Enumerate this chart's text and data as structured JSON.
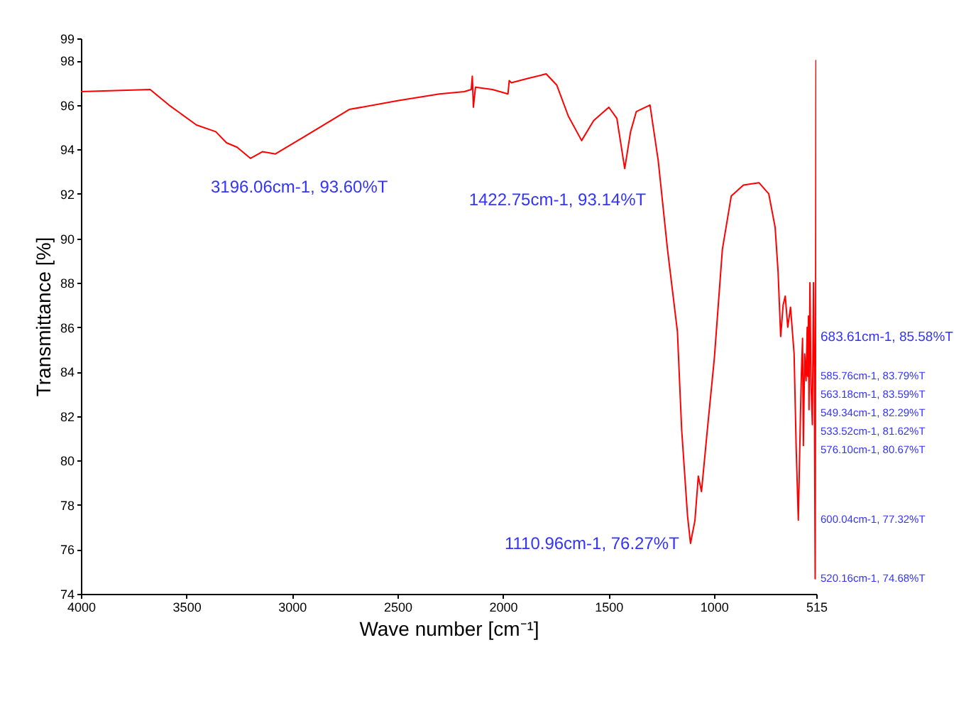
{
  "chart_data": {
    "type": "line",
    "xlabel": "Wave number [cm⁻¹]",
    "ylabel": "Transmittance [%]",
    "xlim": [
      4000,
      515
    ],
    "xticks": [
      4000,
      3500,
      3000,
      2500,
      2000,
      1500,
      1000,
      515
    ],
    "ylim": [
      74,
      99
    ],
    "yticks": [
      74,
      76,
      78,
      80,
      82,
      84,
      86,
      88,
      90,
      92,
      94,
      96,
      98,
      99
    ],
    "grid": false,
    "x": [
      4000,
      3672,
      3583,
      3452,
      3361,
      3310,
      3260,
      3196.06,
      3140,
      3078,
      2937,
      2728,
      2494,
      2300,
      2183,
      2150,
      2145,
      2140,
      2130,
      2050,
      1976,
      1970,
      1960,
      1880,
      1795,
      1745,
      1690,
      1627,
      1570,
      1498,
      1460,
      1422.75,
      1395,
      1368,
      1303,
      1264,
      1220,
      1173,
      1153,
      1125,
      1110.96,
      1090,
      1074,
      1059,
      1030,
      998,
      960,
      918,
      860,
      786,
      740,
      710,
      696,
      683.61,
      672,
      662,
      650,
      637,
      620,
      610,
      600.04,
      590,
      585.76,
      580,
      576.1,
      570,
      563.18,
      558,
      555.76,
      552,
      549.34,
      545,
      540,
      533.52,
      528,
      524,
      520.16,
      516,
      515
    ],
    "series": [
      {
        "color": "#ff0000",
        "values": [
          96.6,
          96.7,
          96.0,
          95.1,
          94.8,
          94.3,
          94.1,
          93.6,
          93.9,
          93.8,
          94.6,
          95.8,
          96.2,
          96.5,
          96.6,
          96.7,
          97.3,
          95.9,
          96.8,
          96.7,
          96.5,
          97.1,
          97.0,
          97.2,
          97.4,
          96.9,
          95.5,
          94.4,
          95.3,
          95.9,
          95.4,
          93.14,
          94.8,
          95.7,
          96.0,
          93.5,
          89.5,
          85.8,
          81.4,
          77.5,
          76.27,
          77.3,
          79.3,
          78.6,
          81.5,
          84.6,
          89.5,
          91.9,
          92.4,
          92.5,
          92.0,
          90.5,
          88.5,
          85.58,
          87.0,
          87.4,
          86.0,
          86.9,
          84.8,
          80.5,
          77.32,
          82.0,
          83.79,
          85.5,
          80.67,
          84.8,
          83.59,
          86.0,
          83.79,
          86.5,
          82.29,
          88.0,
          83.5,
          81.62,
          88.0,
          84.0,
          74.68,
          98.0,
          95.5
        ]
      }
    ],
    "annotations": [
      {
        "text": "3196.06cm-1, 93.60%T",
        "x": 3196.06,
        "y": 93.6
      },
      {
        "text": "1422.75cm-1, 93.14%T",
        "x": 1422.75,
        "y": 93.14
      },
      {
        "text": "1110.96cm-1, 76.27%T",
        "x": 1110.96,
        "y": 76.27
      },
      {
        "text": "683.61cm-1, 85.58%T",
        "x": 683.61,
        "y": 85.58
      },
      {
        "text": "585.76cm-1, 83.79%T",
        "x": 585.76,
        "y": 83.79
      },
      {
        "text": "563.18cm-1, 83.59%T",
        "x": 563.18,
        "y": 83.59
      },
      {
        "text": "549.34cm-1, 82.29%T",
        "x": 549.34,
        "y": 82.29
      },
      {
        "text": "533.52cm-1, 81.62%T",
        "x": 533.52,
        "y": 81.62
      },
      {
        "text": "576.10cm-1, 80.67%T",
        "x": 576.1,
        "y": 80.67
      },
      {
        "text": "600.04cm-1, 77.32%T",
        "x": 600.04,
        "y": 77.32
      },
      {
        "text": "520.16cm-1, 74.68%T",
        "x": 520.16,
        "y": 74.68
      }
    ]
  }
}
